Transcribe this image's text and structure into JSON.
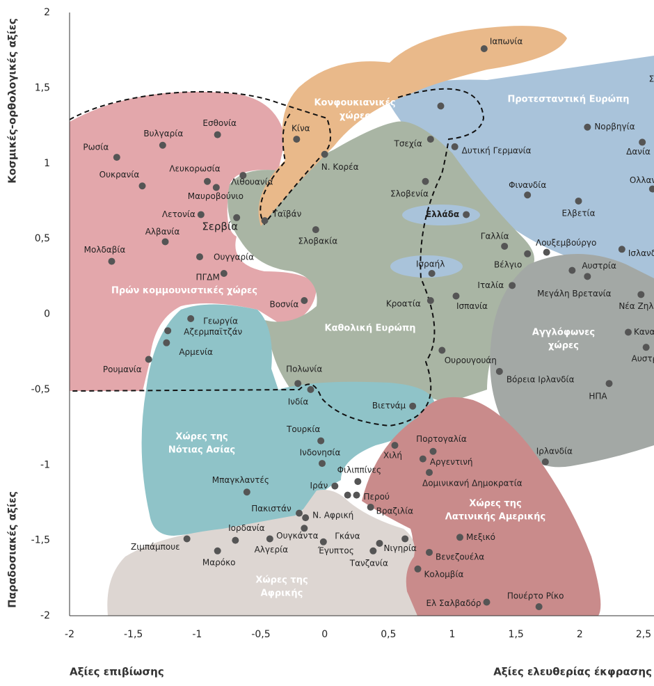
{
  "chart_data": {
    "type": "scatter",
    "x_label_left": "Αξίες επιβίωσης",
    "x_label_right": "Αξίες ελευθερίας έκφρασης",
    "y_label_top": "Κοσμικές-ορθολογικές αξίες",
    "y_label_bottom": "Παραδοσιακές αξίες",
    "xlim": [
      -2,
      2.5
    ],
    "ylim": [
      -2,
      2
    ],
    "xticks": [
      -2,
      {
        "value": -1.5,
        "label": "-1,5"
      },
      -1,
      {
        "value": -0.5,
        "label": "-0,5"
      },
      0,
      {
        "value": 0.5,
        "label": "0,5"
      },
      1,
      {
        "value": 1.5,
        "label": "1,5"
      },
      2,
      {
        "value": 2.5,
        "label": "2,5"
      }
    ],
    "yticks": [
      -2,
      {
        "value": -1.5,
        "label": "-1,5"
      },
      -1,
      {
        "value": -0.5,
        "label": "-0,5"
      },
      0,
      {
        "value": 0.5,
        "label": "0,5"
      },
      1,
      {
        "value": 1.5,
        "label": "1,5"
      },
      2
    ],
    "regions": [
      {
        "lines": [
          "Κονφουκιανικές",
          "χώρες"
        ]
      },
      {
        "lines": [
          "Προτεσταντική Ευρώπη"
        ]
      },
      {
        "lines": [
          "Πρών κομμουνιστικές χώρες"
        ]
      },
      {
        "lines": [
          "Καθολική Ευρώπη"
        ]
      },
      {
        "lines": [
          "Αγγλόφωνες",
          "χώρες"
        ]
      },
      {
        "lines": [
          "Χώρες της",
          "Νότιας Ασίας"
        ]
      },
      {
        "lines": [
          "Χώρες της",
          "Λατινικής Αμερικής"
        ]
      },
      {
        "lines": [
          "Χώρες της",
          "Αφρικής"
        ]
      }
    ],
    "series": [
      {
        "color": "#555555",
        "labels": [
          "Ιαπωνία",
          null,
          "Τσεχία",
          "Δυτική Γερμανία",
          "Νορβηγία",
          "Δανία",
          "Ολλανδία",
          "Σουηδία",
          "Φινανδία",
          "Ελβετία",
          "Ισλανδία",
          "Λουξεμβούργο",
          "Γαλλία",
          "Βέλγιο",
          "Αυστρία",
          "Μεγάλη Βρετανία",
          "Νέα Ζηλανδία",
          "Καναδά",
          "Αυστραλία",
          "ΗΠΑ",
          "Ελλάδα",
          "Σλοβενία",
          "Ισραήλ",
          "Ιταλία",
          "Ισπανία",
          "Κροατία",
          "Ουρουγουάη",
          "Βόρεια Ιρλανδία",
          "Ιρλανδία",
          "Βιετνάμ",
          "Χιλή",
          "Πορτογαλία",
          "Αργεντινή",
          "Δομινικανή Δημοκρατία",
          "Περού",
          "Βραζιλία",
          "Μεξικό",
          "Βενεζουέλα",
          "Κολομβία",
          "Πουέρτο Ρίκο",
          "Ελ Σαλβαδόρ",
          "Νιγηρία",
          "Γκάνα",
          "Τανζανία",
          "Έγυπτος",
          "Ουγκάντα",
          "Ν. Αφρική",
          "Πακιστάν",
          "Ιράν",
          "Φιλιππίνες",
          null,
          "Ινδονησία",
          "Τουρκία",
          "Ινδία",
          "Πολωνία",
          "Μπαγκλαντές",
          "Ιορδανία",
          "Ζιμπάμπουε",
          "Μαρόκο",
          "Αλγερία",
          "Ρουμανία",
          "Αρμενία",
          "Αζερμπαϊτζάν",
          "Γεωργία",
          "Βοσνία",
          "ΠΓΔΜ",
          "Ουγγαρία",
          "Μολδαβία",
          "Αλβανία",
          "Λετονία",
          "Σερβία",
          "Μαυροβούνιο",
          "Λευκορωσία",
          "Ουκρανία",
          "Ρωσία",
          "Βυλγαρία",
          "Εσθονία",
          "Λιθουανία",
          "Κίνα",
          "Ν. Κορέα",
          "Ταϊβάν",
          "Σλοβακία"
        ],
        "x": [
          1.25,
          0.91,
          0.83,
          1.02,
          2.06,
          2.49,
          2.57,
          2.7,
          1.59,
          1.99,
          2.33,
          1.74,
          1.41,
          1.59,
          1.94,
          2.06,
          2.48,
          2.38,
          2.52,
          2.23,
          1.11,
          0.79,
          0.84,
          1.47,
          1.03,
          0.83,
          0.92,
          1.37,
          1.73,
          0.69,
          0.55,
          0.85,
          0.77,
          0.82,
          0.25,
          0.36,
          1.06,
          0.82,
          0.73,
          1.68,
          1.27,
          0.63,
          0.43,
          0.38,
          -0.01,
          -0.16,
          -0.15,
          -0.2,
          0.08,
          0.26,
          0.18,
          -0.02,
          -0.03,
          -0.11,
          -0.21,
          -0.61,
          -0.7,
          -1.08,
          -0.84,
          -0.43,
          -1.38,
          -1.24,
          -1.23,
          -1.05,
          -0.16,
          -0.79,
          -0.98,
          -1.67,
          -1.25,
          -0.97,
          -0.69,
          -0.85,
          -0.92,
          -1.43,
          -1.63,
          -1.27,
          -0.84,
          -0.64,
          -0.22,
          0.0,
          -0.47,
          -0.07
        ],
        "values": [
          1.76,
          1.38,
          1.16,
          1.11,
          1.24,
          1.14,
          0.83,
          1.58,
          0.79,
          0.75,
          0.43,
          0.41,
          0.45,
          0.4,
          0.29,
          0.25,
          0.13,
          -0.12,
          -0.22,
          -0.46,
          0.66,
          0.88,
          0.27,
          0.19,
          0.12,
          0.09,
          -0.24,
          -0.38,
          -0.98,
          -0.61,
          -0.87,
          -0.91,
          -0.96,
          -1.05,
          -1.2,
          -1.28,
          -1.48,
          -1.58,
          -1.69,
          -1.94,
          -1.91,
          -1.49,
          -1.52,
          -1.57,
          -1.51,
          -1.42,
          -1.35,
          -1.32,
          -1.14,
          -1.11,
          -1.2,
          -0.99,
          -0.84,
          -0.5,
          -0.46,
          -1.18,
          -1.5,
          -1.49,
          -1.57,
          -1.49,
          -0.3,
          -0.19,
          -0.11,
          -0.03,
          0.09,
          0.27,
          0.38,
          0.35,
          0.48,
          0.66,
          0.64,
          0.84,
          0.88,
          0.85,
          1.04,
          1.12,
          1.19,
          0.92,
          1.16,
          1.06,
          0.62,
          0.56
        ]
      }
    ]
  }
}
